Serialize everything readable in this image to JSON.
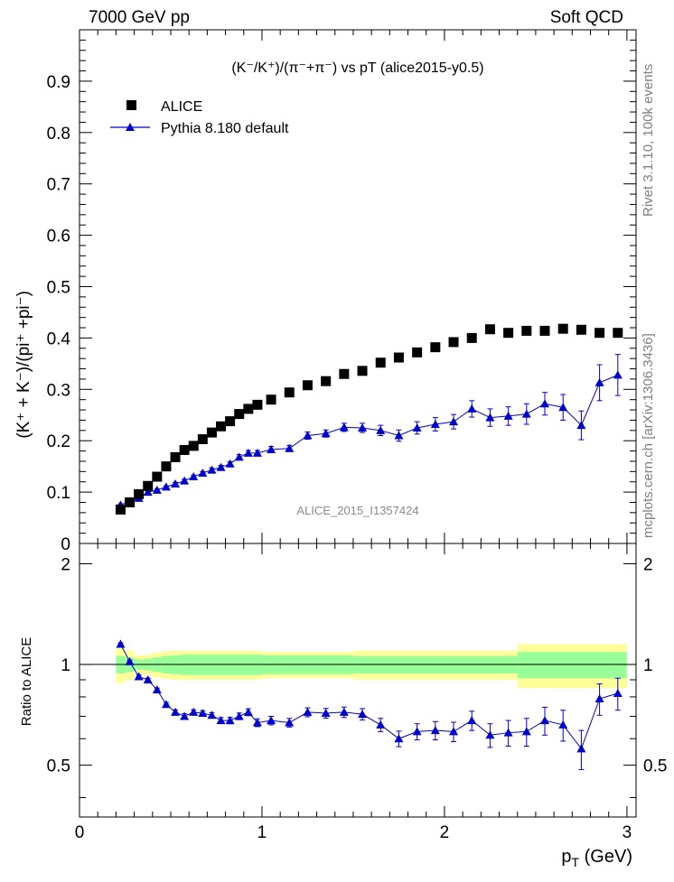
{
  "header": {
    "left": "7000 GeV pp",
    "right": "Soft QCD"
  },
  "side_labels": {
    "rivet": "Rivet 3.1.10,  100k events",
    "mcplots": "mcplots.cern.ch [arXiv:1306.3436]"
  },
  "watermark": "ALICE_2015_I1357424",
  "legend": {
    "data_label": "ALICE",
    "mc_label": "Pythia 8.180 default"
  },
  "colors": {
    "data": "#000000",
    "mc": "#0000cc",
    "band_inner": "#99ff99",
    "band_outer": "#ffff99"
  },
  "chart_data": [
    {
      "type": "scatter",
      "title": "(K⁻/K⁺)/(π⁻+π⁻) vs pT (alice2015-y0.5)",
      "ylabel": "(K⁺ + K⁻)/(pi⁺ +pi⁻)",
      "xlim": [
        0,
        3.05
      ],
      "ylim": [
        0,
        1.0
      ],
      "yticks": [
        "0",
        "0.1",
        "0.2",
        "0.3",
        "0.4",
        "0.5",
        "0.6",
        "0.7",
        "0.8",
        "0.9"
      ],
      "legend_position": "top-left",
      "series": [
        {
          "name": "ALICE",
          "marker": "square",
          "x": [
            0.225,
            0.275,
            0.325,
            0.375,
            0.425,
            0.475,
            0.525,
            0.575,
            0.625,
            0.675,
            0.725,
            0.775,
            0.825,
            0.875,
            0.925,
            0.975,
            1.05,
            1.15,
            1.25,
            1.35,
            1.45,
            1.55,
            1.65,
            1.75,
            1.85,
            1.95,
            2.05,
            2.15,
            2.25,
            2.35,
            2.45,
            2.55,
            2.65,
            2.75,
            2.85,
            2.95
          ],
          "y": [
            0.066,
            0.08,
            0.096,
            0.112,
            0.13,
            0.15,
            0.168,
            0.182,
            0.19,
            0.203,
            0.216,
            0.228,
            0.238,
            0.252,
            0.262,
            0.27,
            0.28,
            0.294,
            0.308,
            0.316,
            0.33,
            0.336,
            0.352,
            0.362,
            0.372,
            0.382,
            0.392,
            0.4,
            0.417,
            0.41,
            0.414,
            0.414,
            0.418,
            0.416,
            0.41,
            0.41
          ]
        },
        {
          "name": "Pythia 8.180 default",
          "marker": "triangle",
          "x": [
            0.225,
            0.275,
            0.325,
            0.375,
            0.425,
            0.475,
            0.525,
            0.575,
            0.625,
            0.675,
            0.725,
            0.775,
            0.825,
            0.875,
            0.925,
            0.975,
            1.05,
            1.15,
            1.25,
            1.35,
            1.45,
            1.55,
            1.65,
            1.75,
            1.85,
            1.95,
            2.05,
            2.15,
            2.25,
            2.35,
            2.45,
            2.55,
            2.65,
            2.75,
            2.85,
            2.95
          ],
          "y": [
            0.075,
            0.082,
            0.088,
            0.1,
            0.104,
            0.11,
            0.116,
            0.122,
            0.13,
            0.137,
            0.143,
            0.148,
            0.155,
            0.168,
            0.176,
            0.176,
            0.183,
            0.185,
            0.21,
            0.214,
            0.226,
            0.225,
            0.22,
            0.21,
            0.225,
            0.232,
            0.237,
            0.262,
            0.245,
            0.248,
            0.252,
            0.272,
            0.265,
            0.23,
            0.313,
            0.328
          ],
          "err": [
            0.002,
            0.002,
            0.002,
            0.002,
            0.002,
            0.002,
            0.003,
            0.003,
            0.003,
            0.003,
            0.004,
            0.004,
            0.004,
            0.005,
            0.005,
            0.005,
            0.006,
            0.006,
            0.007,
            0.007,
            0.008,
            0.009,
            0.01,
            0.011,
            0.012,
            0.013,
            0.014,
            0.016,
            0.017,
            0.018,
            0.02,
            0.022,
            0.025,
            0.028,
            0.035,
            0.04
          ]
        }
      ]
    },
    {
      "type": "line",
      "xlabel": "p_T (GeV)",
      "ylabel": "Ratio to ALICE",
      "xlim": [
        0,
        3.05
      ],
      "ylim": [
        0.35,
        2.3
      ],
      "xticks": [
        "0",
        "1",
        "2",
        "3"
      ],
      "yticks": [
        "0.5",
        "1",
        "2"
      ],
      "reference_line": 1,
      "band_edges": [
        0.2,
        0.25,
        0.3,
        0.35,
        0.4,
        0.45,
        0.5,
        0.55,
        1.0,
        1.5,
        2.0,
        2.4,
        3.0
      ],
      "band_inner": [
        0.06,
        0.05,
        0.035,
        0.04,
        0.05,
        0.06,
        0.065,
        0.07,
        0.065,
        0.06,
        0.06,
        0.09
      ],
      "band_outer": [
        0.12,
        0.1,
        0.065,
        0.07,
        0.085,
        0.095,
        0.1,
        0.1,
        0.09,
        0.1,
        0.1,
        0.15
      ],
      "series": [
        {
          "name": "Pythia 8.180 default",
          "x": [
            0.225,
            0.275,
            0.325,
            0.375,
            0.425,
            0.475,
            0.525,
            0.575,
            0.625,
            0.675,
            0.725,
            0.775,
            0.825,
            0.875,
            0.925,
            0.975,
            1.05,
            1.15,
            1.25,
            1.35,
            1.45,
            1.55,
            1.65,
            1.75,
            1.85,
            1.95,
            2.05,
            2.15,
            2.25,
            2.35,
            2.45,
            2.55,
            2.65,
            2.75,
            2.85,
            2.95
          ],
          "y": [
            1.15,
            1.02,
            0.92,
            0.9,
            0.84,
            0.76,
            0.72,
            0.7,
            0.72,
            0.715,
            0.705,
            0.68,
            0.68,
            0.7,
            0.72,
            0.67,
            0.68,
            0.67,
            0.72,
            0.715,
            0.72,
            0.71,
            0.66,
            0.6,
            0.63,
            0.635,
            0.63,
            0.68,
            0.615,
            0.625,
            0.63,
            0.68,
            0.66,
            0.56,
            0.79,
            0.82
          ],
          "err": [
            0.01,
            0.01,
            0.01,
            0.01,
            0.01,
            0.01,
            0.012,
            0.012,
            0.012,
            0.012,
            0.013,
            0.014,
            0.015,
            0.016,
            0.017,
            0.018,
            0.02,
            0.02,
            0.022,
            0.024,
            0.026,
            0.028,
            0.03,
            0.032,
            0.035,
            0.04,
            0.042,
            0.045,
            0.05,
            0.055,
            0.06,
            0.065,
            0.07,
            0.075,
            0.085,
            0.09
          ]
        }
      ]
    }
  ]
}
